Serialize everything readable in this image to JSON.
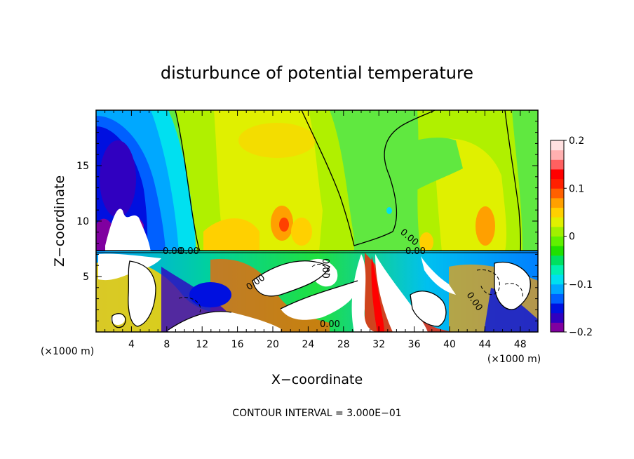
{
  "chart_data": {
    "type": "heatmap",
    "title": "disturbunce of potential temperature",
    "xlabel": "X−coordinate",
    "ylabel": "Z−coordinate",
    "x_unit_label": "(×1000 m)",
    "z_unit_label": "(×1000 m)",
    "footer": "CONTOUR INTERVAL = 3.000E−01",
    "xlim": [
      0,
      50
    ],
    "ylim": [
      0,
      20
    ],
    "x_ticks": [
      4,
      8,
      12,
      16,
      20,
      24,
      28,
      32,
      36,
      40,
      44,
      48
    ],
    "y_ticks": [
      5,
      10,
      15
    ],
    "colorbar": {
      "min": -0.2,
      "max": 0.2,
      "tick_values": [
        0.2,
        0.1,
        0,
        -0.1,
        -0.2
      ],
      "tick_labels": [
        "0.2",
        "0.1",
        "0",
        "−0.1",
        "−0.2"
      ],
      "colors": [
        "#8000a0",
        "#3000c0",
        "#0010e0",
        "#0060ff",
        "#00a8ff",
        "#00e0f0",
        "#00f0b0",
        "#00e060",
        "#20e000",
        "#60f000",
        "#a0f000",
        "#e0f000",
        "#ffd000",
        "#ffa000",
        "#ff6000",
        "#ff2000",
        "#ff0000",
        "#ff6060",
        "#ffb0b0",
        "#ffe0e0"
      ]
    },
    "contour_labels": [
      "0.00",
      "0.00",
      "0.00",
      "0.00",
      "0.00",
      "0.00",
      "0.00",
      "0.00"
    ],
    "tropopause_height_km": 7.3
  }
}
